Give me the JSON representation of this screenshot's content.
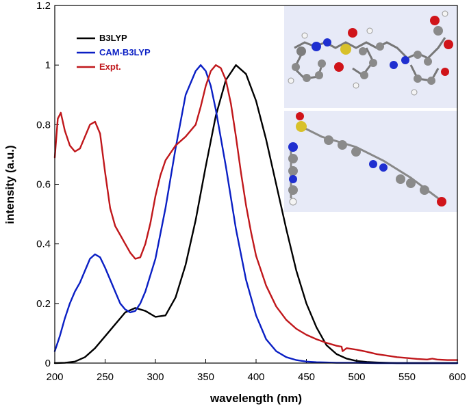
{
  "chart_data": {
    "type": "line",
    "xlabel": "wavelength (nm)",
    "ylabel": "intensity (a.u.)",
    "xlim": [
      200,
      600
    ],
    "ylim": [
      0,
      1.2
    ],
    "x_ticks": [
      200,
      250,
      300,
      350,
      400,
      450,
      500,
      550,
      600
    ],
    "x_tick_labels": [
      "200",
      "250",
      "300",
      "350",
      "400",
      "450",
      "500",
      "550",
      "600"
    ],
    "y_ticks": [
      0,
      0.2,
      0.4,
      0.6,
      0.8,
      1.0,
      1.2
    ],
    "y_tick_labels": [
      "0",
      "0.2",
      "0.4",
      "0.6",
      "0.8",
      "1",
      "1.2"
    ],
    "legend_position": "top-left",
    "series": [
      {
        "name": "B3LYP",
        "color": "#000000",
        "x": [
          200,
          210,
          220,
          230,
          240,
          250,
          260,
          270,
          280,
          290,
          300,
          310,
          320,
          330,
          340,
          350,
          360,
          370,
          380,
          390,
          400,
          410,
          420,
          430,
          440,
          450,
          460,
          470,
          480,
          490,
          500,
          510,
          520,
          530,
          540,
          560,
          580,
          600
        ],
        "y": [
          0.0,
          0.001,
          0.005,
          0.02,
          0.05,
          0.09,
          0.13,
          0.17,
          0.185,
          0.175,
          0.155,
          0.16,
          0.22,
          0.33,
          0.48,
          0.66,
          0.83,
          0.95,
          1.0,
          0.97,
          0.88,
          0.75,
          0.6,
          0.45,
          0.31,
          0.2,
          0.12,
          0.06,
          0.03,
          0.015,
          0.007,
          0.004,
          0.002,
          0.001,
          0.0,
          0.0,
          0.0,
          0.0
        ]
      },
      {
        "name": "CAM-B3LYP",
        "color": "#0a1fc4",
        "x": [
          200,
          205,
          210,
          215,
          220,
          225,
          230,
          235,
          240,
          245,
          250,
          255,
          260,
          265,
          270,
          275,
          280,
          285,
          290,
          300,
          310,
          320,
          330,
          340,
          345,
          350,
          355,
          360,
          370,
          380,
          390,
          400,
          410,
          420,
          430,
          440,
          450,
          460,
          470,
          480,
          500,
          520,
          600
        ],
        "y": [
          0.04,
          0.09,
          0.15,
          0.2,
          0.24,
          0.27,
          0.31,
          0.35,
          0.365,
          0.355,
          0.32,
          0.28,
          0.24,
          0.2,
          0.18,
          0.17,
          0.175,
          0.2,
          0.24,
          0.35,
          0.52,
          0.72,
          0.9,
          0.98,
          1.0,
          0.98,
          0.93,
          0.85,
          0.66,
          0.45,
          0.28,
          0.16,
          0.08,
          0.04,
          0.02,
          0.01,
          0.005,
          0.003,
          0.002,
          0.001,
          0.001,
          0.0,
          0.0
        ]
      },
      {
        "name": "Expt.",
        "color": "#c0171b",
        "x": [
          200,
          203,
          206,
          210,
          215,
          220,
          225,
          230,
          235,
          240,
          245,
          250,
          255,
          260,
          265,
          270,
          275,
          280,
          285,
          290,
          295,
          300,
          305,
          310,
          320,
          330,
          340,
          345,
          350,
          355,
          360,
          365,
          370,
          375,
          380,
          385,
          390,
          395,
          400,
          410,
          420,
          430,
          440,
          450,
          460,
          470,
          480,
          485,
          486,
          490,
          500,
          510,
          520,
          530,
          540,
          550,
          560,
          570,
          575,
          580,
          590,
          600
        ],
        "y": [
          0.69,
          0.82,
          0.84,
          0.78,
          0.73,
          0.71,
          0.72,
          0.76,
          0.8,
          0.81,
          0.77,
          0.64,
          0.52,
          0.46,
          0.43,
          0.4,
          0.37,
          0.35,
          0.355,
          0.4,
          0.47,
          0.56,
          0.63,
          0.68,
          0.73,
          0.76,
          0.8,
          0.86,
          0.93,
          0.98,
          1.0,
          0.99,
          0.95,
          0.87,
          0.76,
          0.64,
          0.53,
          0.44,
          0.36,
          0.26,
          0.19,
          0.145,
          0.115,
          0.095,
          0.08,
          0.068,
          0.058,
          0.055,
          0.04,
          0.05,
          0.045,
          0.038,
          0.03,
          0.025,
          0.02,
          0.017,
          0.014,
          0.012,
          0.015,
          0.012,
          0.01,
          0.01
        ]
      }
    ]
  }
}
